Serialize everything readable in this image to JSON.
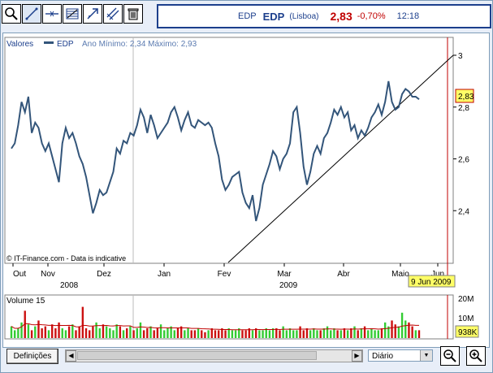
{
  "toolbar": {
    "tools": [
      "zoom-icon",
      "trendline-icon",
      "horizontal-line-icon",
      "fibonacci-icon",
      "arrow-up-icon",
      "parallel-lines-icon",
      "trash-icon"
    ]
  },
  "quote": {
    "code": "EDP",
    "name": "EDP",
    "exchange": "(Lisboa)",
    "price": "2,83",
    "change": "-0,70%",
    "time": "12:18"
  },
  "chart": {
    "legend_prefix": "Valores",
    "legend_series": "EDP",
    "legend_range": "Ano Mínimo: 2,34 Máximo: 2,93",
    "watermark": "© IT-Finance.com - Data is indicative",
    "price_tag": "2,83",
    "date_tag": "9 Jun 2009",
    "volume_label": "Volume 15",
    "volume_tag": "938K",
    "y_ticks": [
      "3",
      "2,8",
      "2,6",
      "2,4"
    ],
    "vol_ticks": [
      "20M",
      "10M"
    ],
    "months": [
      "Out",
      "Nov",
      "Dez",
      "Jan",
      "Fev",
      "Mar",
      "Abr",
      "Maio",
      "Jun"
    ],
    "years": [
      "2008",
      "2009"
    ]
  },
  "chart_data": {
    "type": "line",
    "title": "",
    "ylim": [
      2.2,
      3.0
    ],
    "series": [
      {
        "name": "EDP",
        "values": [
          2.64,
          2.66,
          2.73,
          2.82,
          2.78,
          2.84,
          2.7,
          2.74,
          2.72,
          2.66,
          2.63,
          2.66,
          2.61,
          2.56,
          2.51,
          2.66,
          2.72,
          2.68,
          2.7,
          2.66,
          2.61,
          2.58,
          2.53,
          2.46,
          2.39,
          2.43,
          2.48,
          2.46,
          2.47,
          2.51,
          2.55,
          2.64,
          2.62,
          2.67,
          2.66,
          2.7,
          2.69,
          2.73,
          2.79,
          2.76,
          2.7,
          2.77,
          2.73,
          2.68,
          2.7,
          2.72,
          2.74,
          2.78,
          2.8,
          2.76,
          2.71,
          2.75,
          2.78,
          2.73,
          2.72,
          2.75,
          2.74,
          2.73,
          2.74,
          2.72,
          2.66,
          2.61,
          2.52,
          2.48,
          2.5,
          2.53,
          2.54,
          2.55,
          2.47,
          2.43,
          2.41,
          2.46,
          2.36,
          2.41,
          2.5,
          2.54,
          2.58,
          2.63,
          2.61,
          2.56,
          2.6,
          2.62,
          2.66,
          2.78,
          2.8,
          2.7,
          2.57,
          2.5,
          2.55,
          2.62,
          2.65,
          2.62,
          2.68,
          2.7,
          2.74,
          2.79,
          2.77,
          2.8,
          2.76,
          2.78,
          2.71,
          2.73,
          2.68,
          2.71,
          2.69,
          2.72,
          2.76,
          2.78,
          2.81,
          2.77,
          2.82,
          2.9,
          2.82,
          2.79,
          2.8,
          2.85,
          2.87,
          2.86,
          2.84,
          2.84,
          2.83
        ]
      },
      {
        "name": "Volume 15",
        "values": [
          6,
          4,
          5,
          8,
          14,
          7,
          4,
          6,
          9,
          5,
          6,
          4,
          7,
          5,
          8,
          5,
          4,
          6,
          7,
          4,
          6,
          16,
          5,
          4,
          6,
          8,
          5,
          7,
          6,
          5,
          4,
          7,
          6,
          4,
          5,
          6,
          4,
          5,
          8,
          4,
          5,
          6,
          4,
          5,
          7,
          4,
          5,
          6,
          4,
          5,
          6,
          4,
          5,
          4,
          4,
          5,
          4,
          3,
          4,
          5,
          4,
          4,
          5,
          4,
          5,
          4,
          4,
          5,
          4,
          4,
          5,
          4,
          5,
          4,
          4,
          5,
          4,
          5,
          5,
          4,
          6,
          4,
          5,
          4,
          4,
          6,
          4,
          5,
          4,
          5,
          4,
          4,
          5,
          6,
          4,
          5,
          4,
          4,
          5,
          4,
          5,
          6,
          4,
          5,
          6,
          4,
          5,
          4,
          4,
          5,
          8,
          6,
          9,
          7,
          6,
          13,
          9,
          8,
          6,
          4,
          4
        ]
      }
    ],
    "trendline": {
      "from": [
        "Fev",
        2.2
      ],
      "to": [
        "Jun",
        3.0
      ]
    }
  }
}
